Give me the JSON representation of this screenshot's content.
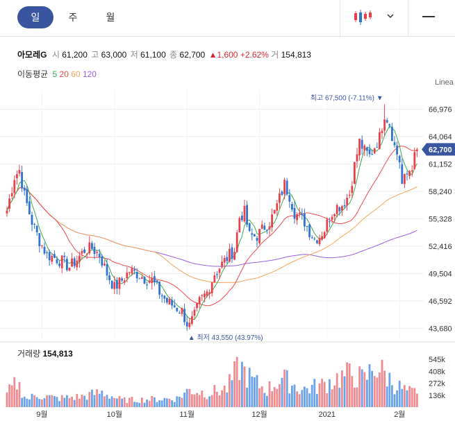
{
  "tabs": [
    {
      "label": "일"
    },
    {
      "label": "주"
    },
    {
      "label": "월"
    }
  ],
  "stock": {
    "name": "아모레G",
    "open_label": "시",
    "open": "61,200",
    "high_label": "고",
    "high": "63,000",
    "low_label": "저",
    "low": "61,100",
    "close_label": "종",
    "close": "62,700",
    "change": "▲1,600",
    "change_pct": "+2.62%",
    "volume_label": "거",
    "volume": "154,813"
  },
  "ma": {
    "label": "이동평균",
    "items": [
      {
        "label": "5",
        "color": "#3aa84b"
      },
      {
        "label": "20",
        "color": "#f04848"
      },
      {
        "label": "60",
        "color": "#f5a35a"
      },
      {
        "label": "120",
        "color": "#9a5ee0"
      }
    ]
  },
  "scale_label": "Linea",
  "current_price_tag": "62,700",
  "max_marker": "최고 67,500 (-7.11%) ▼",
  "min_marker": "▲ 최저 43,550 (43.97%)",
  "volume_panel": {
    "label": "거래량",
    "value": "154,813"
  },
  "colors": {
    "up": "#e8414a",
    "down": "#2f73d3",
    "accent": "#3a55a0"
  },
  "chart_data": {
    "type": "candlestick",
    "y_ticks": [
      "66,976",
      "64,064",
      "61,152",
      "58,240",
      "55,328",
      "52,416",
      "49,504",
      "46,592",
      "43,680"
    ],
    "y_tick_values": [
      66976,
      64064,
      61152,
      58240,
      55328,
      52416,
      49504,
      46592,
      43680
    ],
    "ylim": [
      42600,
      69000
    ],
    "x_tick_labels": [
      {
        "label": "9월",
        "index": 14
      },
      {
        "label": "10월",
        "index": 43
      },
      {
        "label": "11월",
        "index": 72
      },
      {
        "label": "12월",
        "index": 101
      },
      {
        "label": "2021",
        "index": 128
      },
      {
        "label": "2월",
        "index": 157
      }
    ],
    "volume_ticks": [
      {
        "label": "545k",
        "value": 545000
      },
      {
        "label": "408k",
        "value": 408000
      },
      {
        "label": "272k",
        "value": 272000
      },
      {
        "label": "136k",
        "value": 136000
      }
    ],
    "volume_max": 650000,
    "max_point": {
      "value": 67500,
      "index": 151
    },
    "min_point": {
      "value": 43550,
      "index": 73
    },
    "anchors": [
      [
        0,
        56200
      ],
      [
        3,
        59800
      ],
      [
        5,
        60500
      ],
      [
        7,
        57800
      ],
      [
        10,
        55000
      ],
      [
        13,
        53000
      ],
      [
        16,
        51500
      ],
      [
        19,
        51200
      ],
      [
        22,
        50800
      ],
      [
        25,
        50200
      ],
      [
        28,
        51000
      ],
      [
        31,
        52000
      ],
      [
        34,
        52200
      ],
      [
        37,
        51500
      ],
      [
        40,
        49500
      ],
      [
        43,
        48000
      ],
      [
        46,
        48800
      ],
      [
        49,
        49800
      ],
      [
        52,
        49500
      ],
      [
        55,
        49000
      ],
      [
        58,
        48800
      ],
      [
        61,
        47500
      ],
      [
        64,
        46500
      ],
      [
        67,
        46000
      ],
      [
        70,
        45500
      ],
      [
        72,
        44200
      ],
      [
        73,
        43900
      ],
      [
        75,
        45000
      ],
      [
        77,
        46500
      ],
      [
        80,
        47500
      ],
      [
        83,
        49500
      ],
      [
        86,
        50500
      ],
      [
        89,
        51500
      ],
      [
        91,
        52000
      ],
      [
        93,
        55500
      ],
      [
        95,
        56000
      ],
      [
        97,
        53500
      ],
      [
        100,
        53500
      ],
      [
        103,
        54500
      ],
      [
        105,
        55000
      ],
      [
        107,
        56000
      ],
      [
        109,
        57500
      ],
      [
        111,
        59000
      ],
      [
        113,
        57800
      ],
      [
        115,
        56000
      ],
      [
        117,
        55500
      ],
      [
        119,
        55000
      ],
      [
        121,
        54000
      ],
      [
        123,
        53200
      ],
      [
        125,
        53500
      ],
      [
        127,
        54200
      ],
      [
        129,
        55500
      ],
      [
        131,
        56500
      ],
      [
        134,
        56800
      ],
      [
        137,
        58000
      ],
      [
        139,
        61000
      ],
      [
        141,
        63500
      ],
      [
        143,
        62500
      ],
      [
        145,
        62000
      ],
      [
        147,
        63000
      ],
      [
        149,
        64000
      ],
      [
        151,
        66500
      ],
      [
        153,
        65500
      ],
      [
        155,
        63000
      ],
      [
        157,
        61500
      ],
      [
        158,
        59000
      ],
      [
        160,
        60000
      ],
      [
        162,
        61000
      ],
      [
        164,
        62700
      ]
    ],
    "volume_anchors": [
      [
        0,
        150000
      ],
      [
        4,
        280000
      ],
      [
        8,
        90000
      ],
      [
        12,
        140000
      ],
      [
        20,
        100000
      ],
      [
        30,
        120000
      ],
      [
        38,
        170000
      ],
      [
        46,
        80000
      ],
      [
        58,
        90000
      ],
      [
        68,
        100000
      ],
      [
        73,
        200000
      ],
      [
        80,
        160000
      ],
      [
        88,
        210000
      ],
      [
        93,
        470000
      ],
      [
        98,
        300000
      ],
      [
        104,
        200000
      ],
      [
        110,
        330000
      ],
      [
        118,
        200000
      ],
      [
        126,
        250000
      ],
      [
        132,
        330000
      ],
      [
        138,
        380000
      ],
      [
        143,
        310000
      ],
      [
        147,
        470000
      ],
      [
        151,
        380000
      ],
      [
        155,
        260000
      ],
      [
        160,
        180000
      ],
      [
        164,
        154813
      ]
    ]
  }
}
